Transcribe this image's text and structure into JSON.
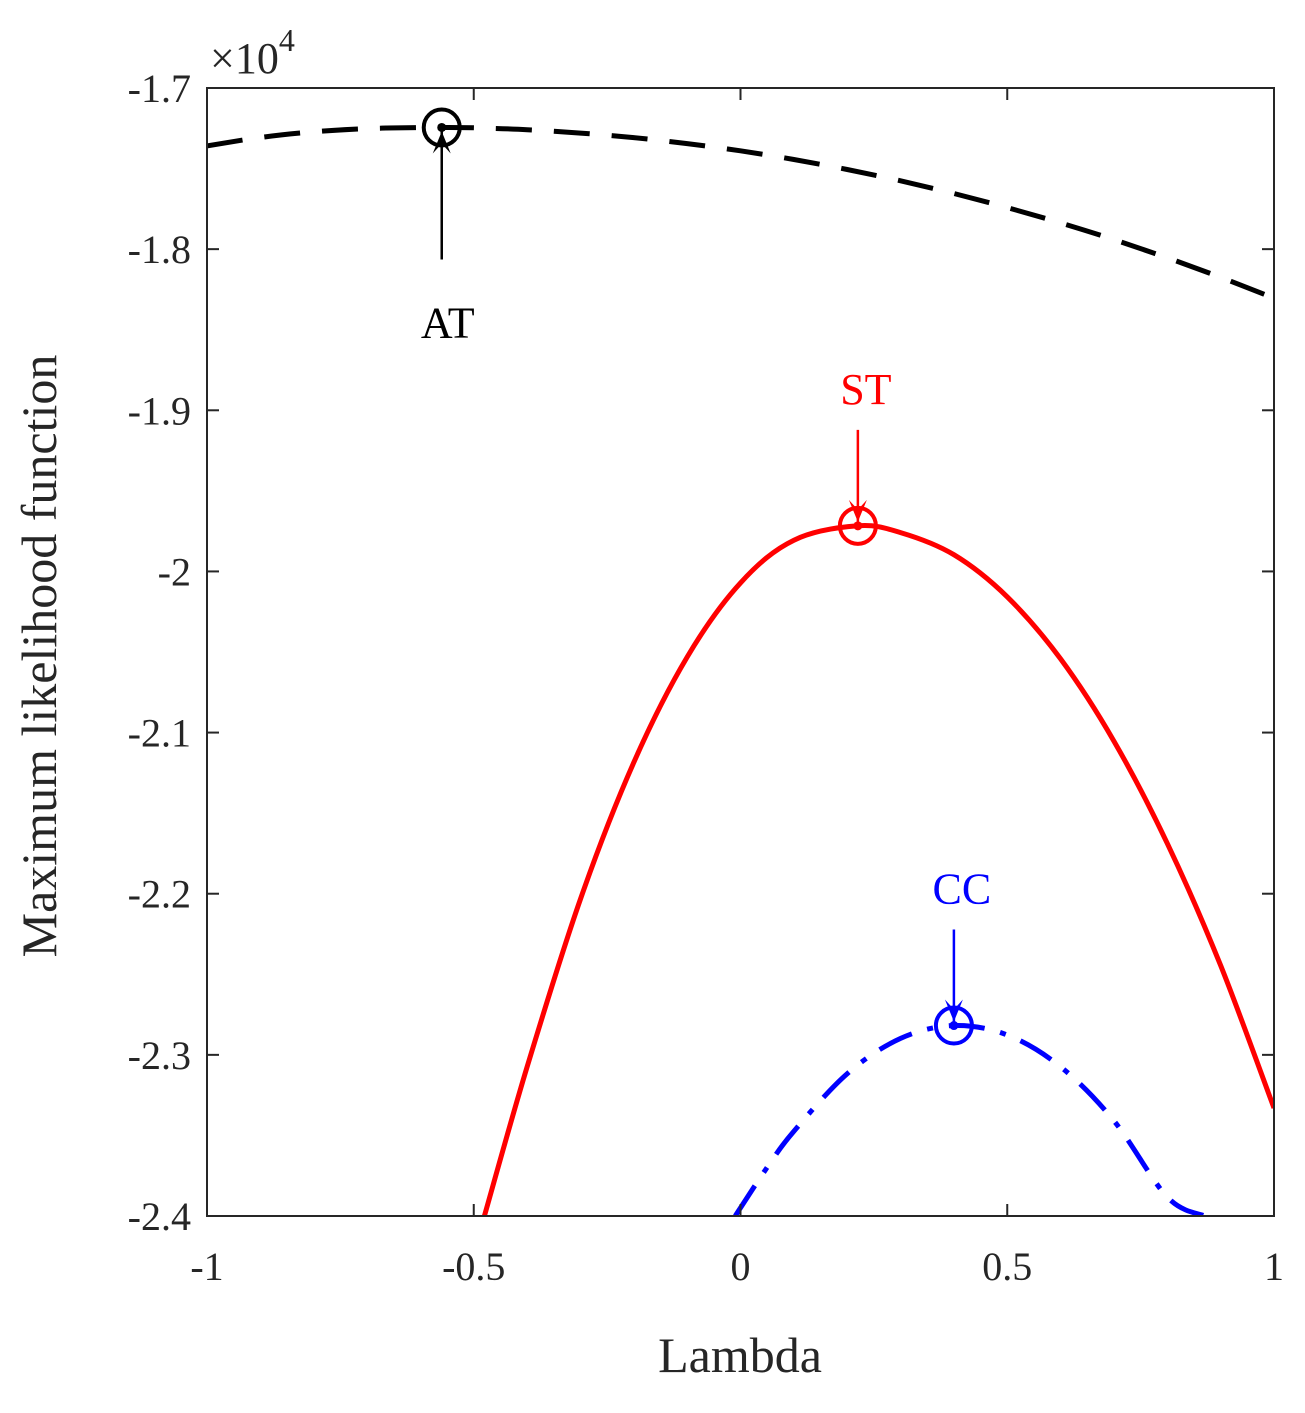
{
  "chart_data": {
    "type": "line",
    "title": "",
    "xlabel": "Lambda",
    "ylabel": "Maximum likelihood function",
    "y_multiplier": {
      "base": "×10",
      "exponent": "4"
    },
    "xlim": [
      -1,
      1
    ],
    "ylim": [
      -2.4,
      -1.7
    ],
    "xticks": [
      -1,
      -0.5,
      0,
      0.5,
      1
    ],
    "xtick_labels": [
      "-1",
      "-0.5",
      "0",
      "0.5",
      "1"
    ],
    "yticks": [
      -1.7,
      -1.8,
      -1.9,
      -2,
      -2.1,
      -2.2,
      -2.3,
      -2.4
    ],
    "ytick_labels": [
      "-1.7",
      "-1.8",
      "-1.9",
      "-2",
      "-2.1",
      "-2.2",
      "-2.3",
      "-2.4"
    ],
    "grid": false,
    "series": [
      {
        "name": "AT",
        "style": "dashed",
        "color": "#000000",
        "x": [
          -1,
          -0.9,
          -0.8,
          -0.7,
          -0.6,
          -0.56,
          -0.5,
          -0.4,
          -0.3,
          -0.2,
          -0.1,
          0,
          0.1,
          0.2,
          0.3,
          0.4,
          0.5,
          0.6,
          0.7,
          0.8,
          0.9,
          1
        ],
        "y": [
          -1.7359,
          -1.7307,
          -1.7272,
          -1.7252,
          -1.7245,
          -1.7245,
          -1.7247,
          -1.7259,
          -1.728,
          -1.7308,
          -1.7345,
          -1.739,
          -1.7444,
          -1.7506,
          -1.7576,
          -1.7655,
          -1.7742,
          -1.7837,
          -1.7941,
          -1.8054,
          -1.8175,
          -1.8304
        ],
        "peak": {
          "x": -0.56,
          "y": -1.7245
        }
      },
      {
        "name": "ST",
        "style": "solid",
        "color": "#ff0000",
        "x": [
          -0.48,
          -0.4,
          -0.3,
          -0.2,
          -0.1,
          0,
          0.1,
          0.22,
          0.3,
          0.4,
          0.5,
          0.6,
          0.7,
          0.8,
          0.9,
          1
        ],
        "y": [
          -2.4,
          -2.3075,
          -2.2033,
          -2.1185,
          -2.0531,
          -2.0071,
          -1.9806,
          -1.9717,
          -1.9759,
          -1.9896,
          -2.0158,
          -2.0543,
          -2.1053,
          -2.1688,
          -2.2446,
          -2.333
        ],
        "peak": {
          "x": 0.22,
          "y": -1.9717
        }
      },
      {
        "name": "CC",
        "style": "dashdot",
        "color": "#0000ff",
        "x": [
          -0.01,
          0.05,
          0.1,
          0.2,
          0.3,
          0.4,
          0.5,
          0.6,
          0.7,
          0.8,
          0.87
        ],
        "y": [
          -2.4,
          -2.3698,
          -2.3474,
          -2.3117,
          -2.2898,
          -2.2818,
          -2.2877,
          -2.3074,
          -2.3409,
          -2.3883,
          -2.4
        ],
        "peak": {
          "x": 0.4,
          "y": -2.2818
        }
      }
    ],
    "annotations": [
      {
        "label": "AT",
        "color": "#000000",
        "target": "AT"
      },
      {
        "label": "ST",
        "color": "#ff0000",
        "target": "ST"
      },
      {
        "label": "CC",
        "color": "#0000ff",
        "target": "CC"
      }
    ]
  }
}
